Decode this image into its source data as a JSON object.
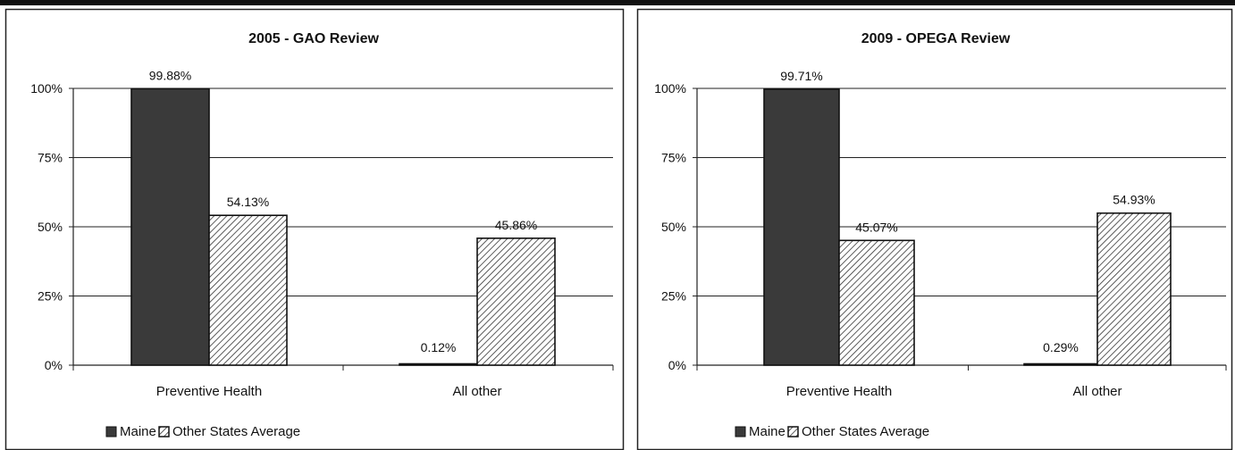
{
  "chart_data": [
    {
      "type": "bar",
      "title": "2005 - GAO Review",
      "categories": [
        "Preventive Health",
        "All other"
      ],
      "series": [
        {
          "name": "Maine",
          "values": [
            99.88,
            0.12
          ],
          "labels": [
            "99.88%",
            "0.12%"
          ],
          "color": "#3a3a3a",
          "pattern": "solid"
        },
        {
          "name": "Other States Average",
          "values": [
            54.13,
            45.86
          ],
          "labels": [
            "54.13%",
            "45.86%"
          ],
          "color": "#ffffff",
          "pattern": "diagonal-hatch"
        }
      ],
      "y_ticks": [
        "100%",
        "75%",
        "50%",
        "25%",
        "0%"
      ],
      "ylim": [
        0,
        100
      ],
      "grid": true,
      "legend": "bottom"
    },
    {
      "type": "bar",
      "title": "2009 - OPEGA Review",
      "categories": [
        "Preventive Health",
        "All other"
      ],
      "series": [
        {
          "name": "Maine",
          "values": [
            99.71,
            0.29
          ],
          "labels": [
            "99.71%",
            "0.29%"
          ],
          "color": "#3a3a3a",
          "pattern": "solid"
        },
        {
          "name": "Other States Average",
          "values": [
            45.07,
            54.93
          ],
          "labels": [
            "45.07%",
            "54.93%"
          ],
          "color": "#ffffff",
          "pattern": "diagonal-hatch"
        }
      ],
      "y_ticks": [
        "100%",
        "75%",
        "50%",
        "25%",
        "0%"
      ],
      "ylim": [
        0,
        100
      ],
      "grid": true,
      "legend": "bottom"
    }
  ]
}
